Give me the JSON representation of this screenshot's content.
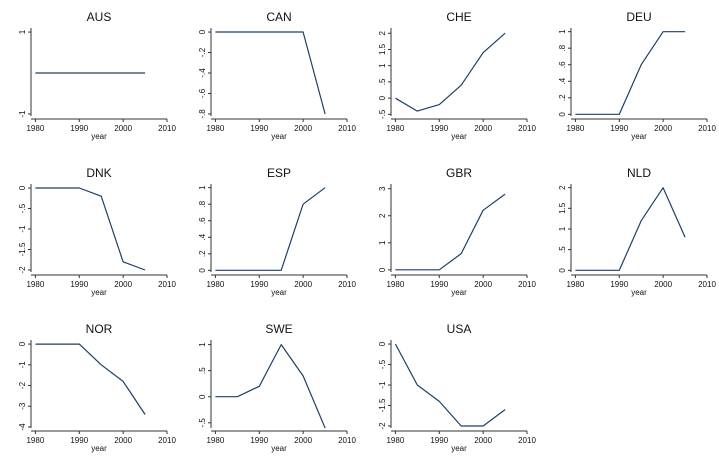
{
  "chart_data": [
    {
      "type": "line",
      "title": "AUS",
      "xlabel": "year",
      "x": [
        1980,
        1985,
        1990,
        1995,
        2000,
        2005
      ],
      "values": [
        0,
        0,
        0,
        0,
        0,
        0
      ],
      "ylim": [
        -1.05,
        1.05
      ],
      "yticks": [
        -1,
        1
      ],
      "ytick_labels": [
        "-1",
        "1"
      ],
      "xticks": [
        1980,
        1990,
        2000,
        2010
      ],
      "xlim": [
        1979,
        2010
      ]
    },
    {
      "type": "line",
      "title": "CAN",
      "xlabel": "year",
      "x": [
        1980,
        1985,
        1990,
        1995,
        2000,
        2005
      ],
      "values": [
        0,
        0,
        0,
        0,
        0,
        -0.8
      ],
      "ylim": [
        -0.82,
        0.02
      ],
      "yticks": [
        0,
        -0.2,
        -0.4,
        -0.6,
        -0.8
      ],
      "ytick_labels": [
        "0",
        "-.2",
        "-.4",
        "-.6",
        "-.8"
      ],
      "xticks": [
        1980,
        1990,
        2000,
        2010
      ],
      "xlim": [
        1979,
        2010
      ]
    },
    {
      "type": "line",
      "title": "CHE",
      "xlabel": "year",
      "x": [
        1980,
        1985,
        1990,
        1995,
        2000,
        2005
      ],
      "values": [
        0,
        -0.4,
        -0.2,
        0.4,
        1.4,
        2
      ],
      "ylim": [
        -0.55,
        2.1
      ],
      "yticks": [
        -0.5,
        0,
        0.5,
        1,
        1.5,
        2
      ],
      "ytick_labels": [
        "-.5",
        "0",
        ".5",
        "1",
        "1.5",
        "2"
      ],
      "xticks": [
        1980,
        1990,
        2000,
        2010
      ],
      "xlim": [
        1979,
        2010
      ]
    },
    {
      "type": "line",
      "title": "DEU",
      "xlabel": "year",
      "x": [
        1980,
        1985,
        1990,
        1995,
        2000,
        2005
      ],
      "values": [
        0,
        0,
        0,
        0.6,
        1,
        1
      ],
      "ylim": [
        -0.02,
        1.02
      ],
      "yticks": [
        0,
        0.2,
        0.4,
        0.6,
        0.8,
        1
      ],
      "ytick_labels": [
        "0",
        ".2",
        ".4",
        ".6",
        ".8",
        "1"
      ],
      "xticks": [
        1980,
        1990,
        2000,
        2010
      ],
      "xlim": [
        1979,
        2010
      ]
    },
    {
      "type": "line",
      "title": "DNK",
      "xlabel": "year",
      "x": [
        1980,
        1985,
        1990,
        1995,
        2000,
        2005
      ],
      "values": [
        0,
        0,
        0,
        -0.2,
        -1.8,
        -2
      ],
      "ylim": [
        -2.05,
        0.05
      ],
      "yticks": [
        0,
        -0.5,
        -1,
        -1.5,
        -2
      ],
      "ytick_labels": [
        "0",
        "-.5",
        "-1",
        "-1.5",
        "-2"
      ],
      "xticks": [
        1980,
        1990,
        2000,
        2010
      ],
      "xlim": [
        1979,
        2010
      ]
    },
    {
      "type": "line",
      "title": "ESP",
      "xlabel": "year",
      "x": [
        1980,
        1985,
        1990,
        1995,
        2000,
        2005
      ],
      "values": [
        0,
        0,
        0,
        0,
        0.8,
        1
      ],
      "ylim": [
        -0.02,
        1.02
      ],
      "yticks": [
        0,
        0.2,
        0.4,
        0.6,
        0.8,
        1
      ],
      "ytick_labels": [
        "0",
        ".2",
        ".4",
        ".6",
        ".8",
        "1"
      ],
      "xticks": [
        1980,
        1990,
        2000,
        2010
      ],
      "xlim": [
        1979,
        2010
      ]
    },
    {
      "type": "line",
      "title": "GBR",
      "xlabel": "year",
      "x": [
        1980,
        1985,
        1990,
        1995,
        2000,
        2005
      ],
      "values": [
        0,
        0,
        0,
        0.6,
        2.2,
        2.8
      ],
      "ylim": [
        -0.08,
        3.1
      ],
      "yticks": [
        0,
        1,
        2,
        3
      ],
      "ytick_labels": [
        "0",
        "1",
        "2",
        "3"
      ],
      "xticks": [
        1980,
        1990,
        2000,
        2010
      ],
      "xlim": [
        1979,
        2010
      ]
    },
    {
      "type": "line",
      "title": "NLD",
      "xlabel": "year",
      "x": [
        1980,
        1985,
        1990,
        1995,
        2000,
        2005
      ],
      "values": [
        0,
        0,
        0,
        1.2,
        2,
        0.8
      ],
      "ylim": [
        -0.04,
        2.04
      ],
      "yticks": [
        0,
        0.5,
        1,
        1.5,
        2
      ],
      "ytick_labels": [
        "0",
        ".5",
        "1",
        "1.5",
        "2"
      ],
      "xticks": [
        1980,
        1990,
        2000,
        2010
      ],
      "xlim": [
        1979,
        2010
      ]
    },
    {
      "type": "line",
      "title": "NOR",
      "xlabel": "year",
      "x": [
        1980,
        1985,
        1990,
        1995,
        2000,
        2005
      ],
      "values": [
        0,
        0,
        0,
        -1,
        -1.8,
        -3.4
      ],
      "ylim": [
        -4.05,
        0.1
      ],
      "yticks": [
        0,
        -1,
        -2,
        -3,
        -4
      ],
      "ytick_labels": [
        "0",
        "-1",
        "-2",
        "-3",
        "-4"
      ],
      "xticks": [
        1980,
        1990,
        2000,
        2010
      ],
      "xlim": [
        1979,
        2010
      ]
    },
    {
      "type": "line",
      "title": "SWE",
      "xlabel": "year",
      "x": [
        1980,
        1985,
        1990,
        1995,
        2000,
        2005
      ],
      "values": [
        0,
        0,
        0.2,
        1,
        0.4,
        -0.6
      ],
      "ylim": [
        -0.6,
        1.05
      ],
      "yticks": [
        1,
        0.5,
        0,
        -0.5
      ],
      "ytick_labels": [
        "1",
        ".5",
        "0",
        "-.5"
      ],
      "xticks": [
        1980,
        1990,
        2000,
        2010
      ],
      "xlim": [
        1979,
        2010
      ]
    },
    {
      "type": "line",
      "title": "USA",
      "xlabel": "year",
      "x": [
        1980,
        1985,
        1990,
        1995,
        2000,
        2005
      ],
      "values": [
        0,
        -1,
        -1.4,
        -2,
        -2,
        -1.6
      ],
      "ylim": [
        -2.05,
        0.05
      ],
      "yticks": [
        0,
        -0.5,
        -1,
        -1.5,
        -2
      ],
      "ytick_labels": [
        "0",
        "-.5",
        "-1",
        "-1.5",
        "-2"
      ],
      "xticks": [
        1980,
        1990,
        2000,
        2010
      ],
      "xlim": [
        1979,
        2010
      ]
    }
  ],
  "colors": {
    "line": "#1f3f66",
    "axis": "#333333"
  }
}
